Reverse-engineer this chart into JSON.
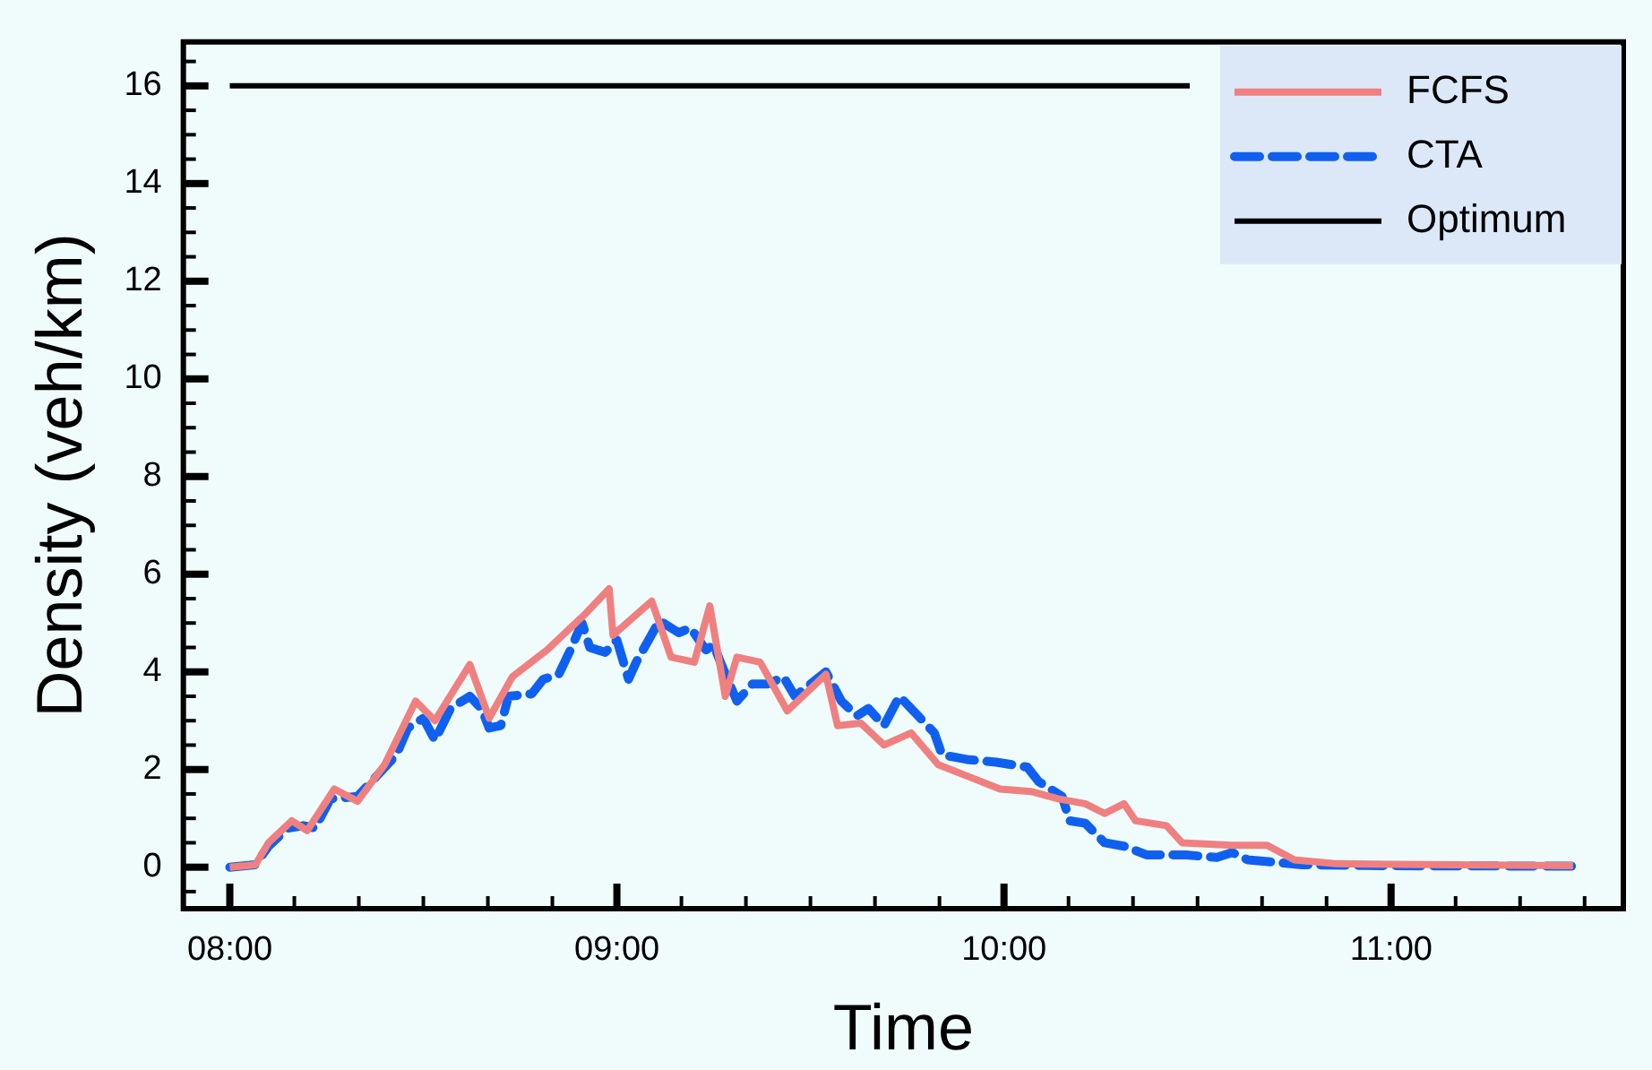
{
  "chart_data": {
    "type": "line",
    "xlabel": "Time",
    "ylabel": "Density (veh/km)",
    "xlim": [
      7.88,
      11.6
    ],
    "ylim": [
      -0.85,
      16.9
    ],
    "xticks": [
      {
        "value": 8,
        "label": "08:00"
      },
      {
        "value": 8.1667,
        "label": null
      },
      {
        "value": 8.3333,
        "label": null
      },
      {
        "value": 8.5,
        "label": null
      },
      {
        "value": 8.6667,
        "label": null
      },
      {
        "value": 8.8333,
        "label": null
      },
      {
        "value": 9,
        "label": "09:00"
      },
      {
        "value": 9.1667,
        "label": null
      },
      {
        "value": 9.3333,
        "label": null
      },
      {
        "value": 9.5,
        "label": null
      },
      {
        "value": 9.6667,
        "label": null
      },
      {
        "value": 9.8333,
        "label": null
      },
      {
        "value": 10,
        "label": "10:00"
      },
      {
        "value": 10.1667,
        "label": null
      },
      {
        "value": 10.3333,
        "label": null
      },
      {
        "value": 10.5,
        "label": null
      },
      {
        "value": 10.6667,
        "label": null
      },
      {
        "value": 10.8333,
        "label": null
      },
      {
        "value": 11,
        "label": "11:00"
      },
      {
        "value": 11.1667,
        "label": null
      },
      {
        "value": 11.3333,
        "label": null
      },
      {
        "value": 11.5,
        "label": null
      }
    ],
    "yticks": [
      {
        "value": -0.5,
        "label": null
      },
      0,
      {
        "value": 0.5,
        "label": null
      },
      {
        "value": 1,
        "label": null
      },
      {
        "value": 1.5,
        "label": null
      },
      2,
      {
        "value": 2.5,
        "label": null
      },
      {
        "value": 3,
        "label": null
      },
      {
        "value": 3.5,
        "label": null
      },
      4,
      {
        "value": 4.5,
        "label": null
      },
      {
        "value": 5,
        "label": null
      },
      {
        "value": 5.5,
        "label": null
      },
      6,
      {
        "value": 6.5,
        "label": null
      },
      {
        "value": 7,
        "label": null
      },
      {
        "value": 7.5,
        "label": null
      },
      8,
      {
        "value": 8.5,
        "label": null
      },
      {
        "value": 9,
        "label": null
      },
      {
        "value": 9.5,
        "label": null
      },
      10,
      {
        "value": 10.5,
        "label": null
      },
      {
        "value": 11,
        "label": null
      },
      {
        "value": 11.5,
        "label": null
      },
      12,
      {
        "value": 12.5,
        "label": null
      },
      {
        "value": 13,
        "label": null
      },
      {
        "value": 13.5,
        "label": null
      },
      14,
      {
        "value": 14.5,
        "label": null
      },
      {
        "value": 15,
        "label": null
      },
      {
        "value": 15.5,
        "label": null
      },
      16,
      {
        "value": 16.5,
        "label": null
      }
    ],
    "grid": false,
    "legend": "top right",
    "marker": "none",
    "series": [
      {
        "name": "FCFS",
        "color": "#f08080",
        "line_style": "solid",
        "x": [
          8.0,
          8.066,
          8.1,
          8.16,
          8.2,
          8.27,
          8.33,
          8.4,
          8.48,
          8.53,
          8.62,
          8.67,
          8.73,
          8.82,
          8.92,
          8.98,
          8.99,
          9.09,
          9.14,
          9.2,
          9.24,
          9.28,
          9.31,
          9.37,
          9.44,
          9.54,
          9.57,
          9.63,
          9.69,
          9.76,
          9.83,
          9.91,
          9.99,
          10.07,
          10.14,
          10.21,
          10.26,
          10.31,
          10.34,
          10.42,
          10.46,
          10.59,
          10.68,
          10.75,
          10.86,
          11.47
        ],
        "values": [
          0,
          0.05,
          0.5,
          0.95,
          0.75,
          1.6,
          1.35,
          2.1,
          3.4,
          3.0,
          4.15,
          3.05,
          3.9,
          4.45,
          5.2,
          5.7,
          4.75,
          5.45,
          4.3,
          4.2,
          5.35,
          3.5,
          4.3,
          4.2,
          3.2,
          3.95,
          2.9,
          2.95,
          2.5,
          2.75,
          2.1,
          1.85,
          1.6,
          1.55,
          1.4,
          1.3,
          1.1,
          1.3,
          0.95,
          0.85,
          0.5,
          0.45,
          0.45,
          0.15,
          0.07,
          0.03
        ]
      },
      {
        "name": "CTA",
        "color": "#1060f0",
        "line_style": "dashed",
        "x": [
          8.0,
          8.066,
          8.1,
          8.15,
          8.19,
          8.22,
          8.26,
          8.33,
          8.36,
          8.43,
          8.46,
          8.5,
          8.53,
          8.57,
          8.62,
          8.65,
          8.67,
          8.7,
          8.72,
          8.78,
          8.81,
          8.85,
          8.88,
          8.91,
          8.93,
          8.97,
          9.0,
          9.03,
          9.05,
          9.11,
          9.16,
          9.19,
          9.23,
          9.25,
          9.27,
          9.31,
          9.35,
          9.39,
          9.43,
          9.46,
          9.54,
          9.58,
          9.62,
          9.65,
          9.69,
          9.73,
          9.82,
          9.84,
          9.91,
          9.98,
          10.06,
          10.09,
          10.15,
          10.17,
          10.21,
          10.26,
          10.31,
          10.37,
          10.47,
          10.55,
          10.59,
          10.63,
          10.77,
          11.0,
          11.47
        ],
        "values": [
          0,
          0.05,
          0.43,
          0.8,
          0.85,
          0.8,
          1.4,
          1.45,
          1.7,
          2.3,
          2.85,
          3.05,
          2.6,
          3.25,
          3.5,
          3.25,
          2.85,
          2.9,
          3.5,
          3.55,
          3.85,
          3.95,
          4.45,
          5.0,
          4.5,
          4.4,
          4.65,
          3.85,
          4.2,
          5.05,
          4.8,
          4.9,
          4.45,
          4.55,
          4.15,
          3.4,
          3.75,
          3.75,
          3.9,
          3.5,
          4.0,
          3.4,
          3.1,
          3.25,
          2.9,
          3.5,
          2.75,
          2.3,
          2.2,
          2.15,
          2.05,
          1.75,
          1.45,
          0.95,
          0.9,
          0.5,
          0.43,
          0.25,
          0.25,
          0.2,
          0.3,
          0.15,
          0.05,
          0.03,
          0.02
        ]
      },
      {
        "name": "Optimum",
        "color": "#000000",
        "line_style": "solid",
        "x": [
          8.0,
          10.48
        ],
        "values": [
          16,
          16
        ]
      }
    ]
  }
}
